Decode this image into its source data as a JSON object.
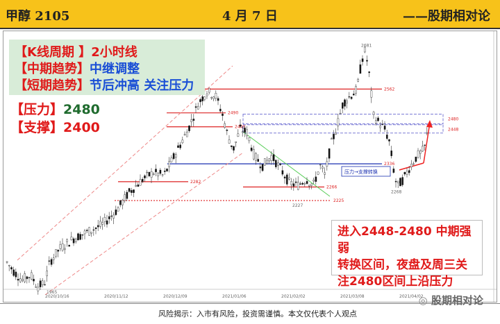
{
  "header": {
    "symbol": "甲醇 2105",
    "date": "4 月 7 日",
    "brand": "——股期相对论"
  },
  "info": {
    "period_label": "【K线周期 】",
    "period_value": "2小时线",
    "mid_label": "【中期趋势】",
    "mid_value": "中继调整",
    "short_label": "【短期趋势】",
    "short_value": "节后冲高 关注压力",
    "resistance_label": "【压力】",
    "resistance_value": "2480",
    "support_label": "【支撑】",
    "support_value": "2400"
  },
  "note": {
    "line1": "进入2448-2480 中期强弱",
    "line2": "转换区间，夜盘及周三关",
    "line3": "注2480区间上沿压力"
  },
  "footer": {
    "risk": "风险揭示：入市有风险，投资需谨慎。本文仅代表个人观点",
    "watermark": "股期相对论"
  },
  "chart_data": {
    "type": "line",
    "series_style": "candlestick",
    "ylim": [
      1940,
      2720
    ],
    "x_ticks": [
      "2020/10/16",
      "2020/11/12",
      "2020/12/09",
      "2021/01/06",
      "2021/02/02",
      "2021/03/08",
      "2021/04/02"
    ],
    "price_points": [
      [
        0,
        2050
      ],
      [
        14,
        2010
      ],
      [
        26,
        1985
      ],
      [
        38,
        2000
      ],
      [
        48,
        1965
      ],
      [
        58,
        1975
      ],
      [
        66,
        2040
      ],
      [
        80,
        2080
      ],
      [
        100,
        2110
      ],
      [
        120,
        2130
      ],
      [
        140,
        2150
      ],
      [
        160,
        2190
      ],
      [
        180,
        2250
      ],
      [
        200,
        2290
      ],
      [
        215,
        2310
      ],
      [
        230,
        2300
      ],
      [
        250,
        2380
      ],
      [
        265,
        2440
      ],
      [
        280,
        2520
      ],
      [
        292,
        2555
      ],
      [
        305,
        2540
      ],
      [
        315,
        2480
      ],
      [
        322,
        2420
      ],
      [
        330,
        2380
      ],
      [
        340,
        2440
      ],
      [
        350,
        2430
      ],
      [
        360,
        2360
      ],
      [
        372,
        2330
      ],
      [
        385,
        2360
      ],
      [
        398,
        2320
      ],
      [
        410,
        2280
      ],
      [
        422,
        2270
      ],
      [
        435,
        2290
      ],
      [
        445,
        2270
      ],
      [
        455,
        2330
      ],
      [
        462,
        2300
      ],
      [
        470,
        2390
      ],
      [
        478,
        2440
      ],
      [
        488,
        2520
      ],
      [
        498,
        2540
      ],
      [
        508,
        2560
      ],
      [
        515,
        2650
      ],
      [
        520,
        2681
      ],
      [
        526,
        2600
      ],
      [
        532,
        2480
      ],
      [
        540,
        2460
      ],
      [
        548,
        2440
      ],
      [
        555,
        2400
      ],
      [
        562,
        2300
      ],
      [
        566,
        2268
      ],
      [
        575,
        2290
      ],
      [
        585,
        2330
      ],
      [
        595,
        2360
      ],
      [
        605,
        2380
      ],
      [
        612,
        2460
      ]
    ],
    "levels": [
      {
        "value": "2562",
        "kind": "resistance-line"
      },
      {
        "value": "2490",
        "kind": "resistance-line"
      },
      {
        "value": "2448",
        "kind": "resistance-line"
      },
      {
        "value": "2336",
        "kind": "support-line"
      },
      {
        "value": "2282",
        "kind": "support-line"
      },
      {
        "value": "2266",
        "kind": "support-line"
      },
      {
        "value": "2225",
        "kind": "support-line"
      },
      {
        "value": "2227",
        "kind": "low"
      },
      {
        "value": "1965",
        "kind": "low"
      },
      {
        "value": "2681",
        "kind": "high"
      },
      {
        "value": "2268",
        "kind": "low"
      },
      {
        "value": "2480",
        "kind": "zone"
      },
      {
        "value": "2448",
        "kind": "zone"
      }
    ],
    "annotations": [
      {
        "text": "压力→支撑转换"
      }
    ]
  }
}
